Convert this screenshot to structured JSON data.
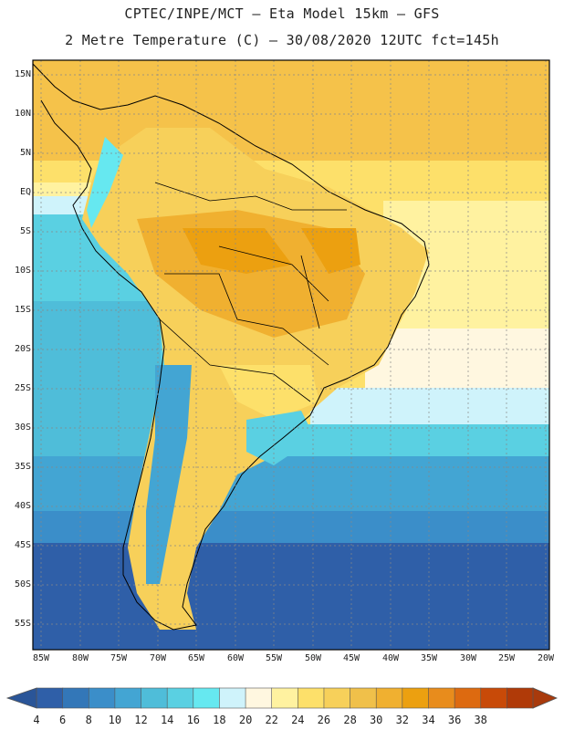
{
  "header": {
    "line1": "CPTEC/INPE/MCT –  Eta Model 15km – GFS",
    "line2": "2 Metre Temperature (C) – 30/08/2020 12UTC fct=145h"
  },
  "map": {
    "region": "South America",
    "lat_labels": [
      "15N",
      "10N",
      "5N",
      "EQ",
      "5S",
      "10S",
      "15S",
      "20S",
      "25S",
      "30S",
      "35S",
      "40S",
      "45S",
      "50S",
      "55S"
    ],
    "lon_labels": [
      "85W",
      "80W",
      "75W",
      "70W",
      "65W",
      "60W",
      "55W",
      "50W",
      "45W",
      "40W",
      "35W",
      "30W",
      "25W",
      "20W"
    ]
  },
  "colorbar": {
    "levels": [
      "4",
      "6",
      "8",
      "10",
      "12",
      "14",
      "16",
      "18",
      "20",
      "22",
      "24",
      "26",
      "28",
      "30",
      "32",
      "34",
      "36",
      "38"
    ],
    "colors": [
      "#2f5fa8",
      "#3377b8",
      "#3b8ec9",
      "#43a5d3",
      "#4fbdd9",
      "#5ad0e2",
      "#66e8f0",
      "#cff3fb",
      "#fff7e0",
      "#fff2a0",
      "#fde06a",
      "#f7d05a",
      "#f0c04a",
      "#f0b030",
      "#eca010",
      "#e88c1c",
      "#dd6a10",
      "#c84a08",
      "#b03a08"
    ],
    "under_color": "#2a5598",
    "over_color": "#a83a0c"
  }
}
